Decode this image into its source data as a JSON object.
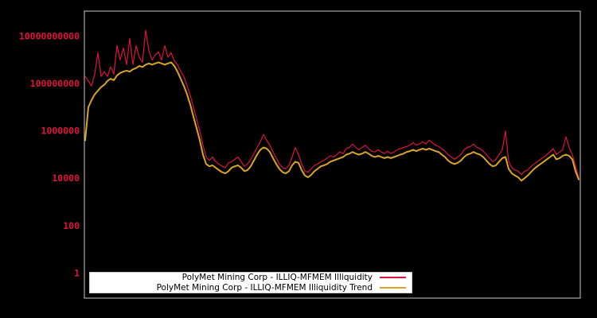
{
  "figure": {
    "background": "#000000"
  },
  "chart_data": {
    "type": "line",
    "title": "",
    "xlabel": "",
    "ylabel": "",
    "x_axis": {
      "scale": "linear",
      "tick_labels": []
    },
    "y_axis": {
      "scale": "log",
      "tick_color": "#dc143c",
      "range": [
        0.1,
        120000000000
      ],
      "ticks": [
        {
          "label": "1",
          "value": 1
        },
        {
          "label": "100",
          "value": 100
        },
        {
          "label": "10000",
          "value": 10000
        },
        {
          "label": "1000000",
          "value": 1000000
        },
        {
          "label": "100000000",
          "value": 100000000
        },
        {
          "label": "10000000000",
          "value": 10000000000
        }
      ]
    },
    "plot": {
      "background": "#000000",
      "border_color": "#c8c8c8",
      "grid": false
    },
    "legend": {
      "position": "bottom-center",
      "background": "#ffffff",
      "text_color": "#000000"
    },
    "series": [
      {
        "name": "PolyMet Mining Corp - ILLIQ-MFMEM Illiquidity",
        "color": "#dc143c",
        "linewidth": 1.2,
        "values": [
          200000000.0,
          130000000.0,
          79000000.0,
          250000000.0,
          2000000000.0,
          200000000.0,
          320000000.0,
          200000000.0,
          500000000.0,
          250000000.0,
          4000000000.0,
          1000000000.0,
          3200000000.0,
          630000000.0,
          7900000000.0,
          630000000.0,
          4000000000.0,
          1300000000.0,
          790000000.0,
          18000000000.0,
          2500000000.0,
          1000000000.0,
          1600000000.0,
          2200000000.0,
          1000000000.0,
          4000000000.0,
          1300000000.0,
          2000000000.0,
          890000000.0,
          630000000.0,
          320000000.0,
          200000000.0,
          79000000.0,
          32000000.0,
          10000000.0,
          3200000.0,
          1000000.0,
          250000.0,
          79000.0,
          56000.0,
          79000.0,
          50000.0,
          40000.0,
          32000.0,
          28000.0,
          45000.0,
          50000.0,
          63000.0,
          79000.0,
          50000.0,
          32000.0,
          40000.0,
          63000.0,
          110000.0,
          200000.0,
          350000.0,
          710000.0,
          400000.0,
          250000.0,
          130000.0,
          71000.0,
          40000.0,
          28000.0,
          25000.0,
          35000.0,
          79000.0,
          200000.0,
          100000.0,
          40000.0,
          20000.0,
          18000.0,
          25000.0,
          35000.0,
          40000.0,
          50000.0,
          56000.0,
          71000.0,
          89000.0,
          79000.0,
          100000.0,
          130000.0,
          110000.0,
          180000.0,
          200000.0,
          280000.0,
          200000.0,
          160000.0,
          200000.0,
          250000.0,
          180000.0,
          140000.0,
          130000.0,
          160000.0,
          130000.0,
          110000.0,
          140000.0,
          110000.0,
          130000.0,
          160000.0,
          180000.0,
          200000.0,
          220000.0,
          250000.0,
          320000.0,
          250000.0,
          280000.0,
          350000.0,
          280000.0,
          400000.0,
          320000.0,
          250000.0,
          220000.0,
          180000.0,
          140000.0,
          100000.0,
          79000.0,
          63000.0,
          79000.0,
          100000.0,
          160000.0,
          200000.0,
          220000.0,
          280000.0,
          200000.0,
          180000.0,
          140000.0,
          100000.0,
          71000.0,
          50000.0,
          63000.0,
          100000.0,
          160000.0,
          1000000.0,
          50000.0,
          28000.0,
          22000.0,
          20000.0,
          14000.0,
          20000.0,
          22000.0,
          32000.0,
          40000.0,
          50000.0,
          63000.0,
          79000.0,
          100000.0,
          130000.0,
          180000.0,
          100000.0,
          130000.0,
          160000.0,
          560000.0,
          200000.0,
          100000.0,
          32000.0,
          11000.0
        ]
      },
      {
        "name": "PolyMet Mining Corp - ILLIQ-MFMEM Illiquidity Trend",
        "color": "#daa520",
        "linewidth": 2,
        "values": [
          400000.0,
          10000000.0,
          20000000.0,
          35000000.0,
          50000000.0,
          71000000.0,
          89000000.0,
          130000000.0,
          160000000.0,
          140000000.0,
          220000000.0,
          280000000.0,
          320000000.0,
          350000000.0,
          320000000.0,
          400000000.0,
          450000000.0,
          560000000.0,
          500000000.0,
          630000000.0,
          710000000.0,
          630000000.0,
          710000000.0,
          790000000.0,
          710000000.0,
          630000000.0,
          710000000.0,
          790000000.0,
          560000000.0,
          320000000.0,
          160000000.0,
          79000000.0,
          35000000.0,
          13000000.0,
          4000000.0,
          1300000.0,
          400000.0,
          100000.0,
          40000.0,
          32000.0,
          35000.0,
          28000.0,
          22000.0,
          18000.0,
          16000.0,
          20000.0,
          28000.0,
          32000.0,
          35000.0,
          28000.0,
          20000.0,
          22000.0,
          32000.0,
          56000.0,
          100000.0,
          160000.0,
          200000.0,
          180000.0,
          130000.0,
          71000.0,
          40000.0,
          25000.0,
          18000.0,
          16000.0,
          20000.0,
          35000.0,
          50000.0,
          45000.0,
          22000.0,
          13000.0,
          11000.0,
          14000.0,
          20000.0,
          25000.0,
          32000.0,
          35000.0,
          40000.0,
          50000.0,
          56000.0,
          63000.0,
          71000.0,
          79000.0,
          100000.0,
          110000.0,
          130000.0,
          110000.0,
          100000.0,
          110000.0,
          130000.0,
          110000.0,
          89000.0,
          79000.0,
          89000.0,
          79000.0,
          71000.0,
          79000.0,
          71000.0,
          79000.0,
          89000.0,
          100000.0,
          110000.0,
          130000.0,
          140000.0,
          160000.0,
          140000.0,
          160000.0,
          180000.0,
          160000.0,
          180000.0,
          160000.0,
          140000.0,
          130000.0,
          100000.0,
          79000.0,
          56000.0,
          45000.0,
          40000.0,
          45000.0,
          56000.0,
          79000.0,
          100000.0,
          110000.0,
          130000.0,
          110000.0,
          100000.0,
          79000.0,
          56000.0,
          40000.0,
          32000.0,
          35000.0,
          50000.0,
          71000.0,
          79000.0,
          25000.0,
          16000.0,
          13000.0,
          11000.0,
          7900.0,
          10000.0,
          13000.0,
          18000.0,
          25000.0,
          32000.0,
          40000.0,
          50000.0,
          63000.0,
          79000.0,
          100000.0,
          63000.0,
          71000.0,
          89000.0,
          100000.0,
          89000.0,
          63000.0,
          20000.0,
          8900.0
        ]
      }
    ]
  }
}
